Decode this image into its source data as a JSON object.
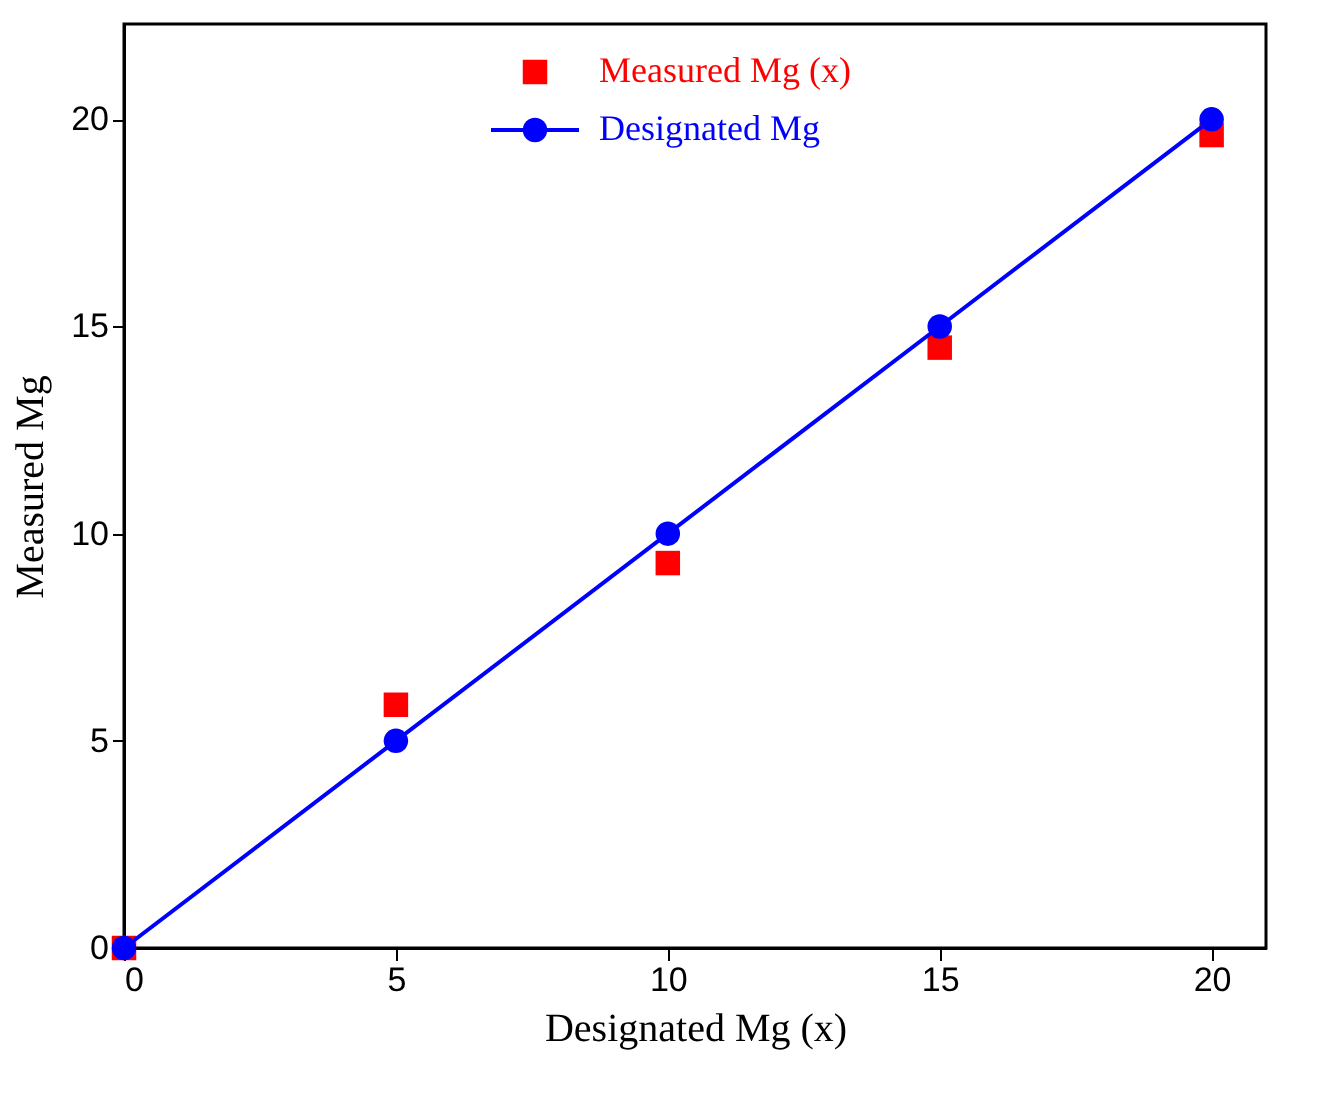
{
  "chart_data": {
    "type": "scatter",
    "xlabel": "Designated Mg (x)",
    "ylabel": "Measured Mg",
    "x": [
      0,
      5,
      10,
      15,
      20
    ],
    "series": [
      {
        "name": "Measured Mg (x)",
        "type": "scatter",
        "marker": "square",
        "color": "#ff0000",
        "values": [
          0,
          5.87,
          9.29,
          14.49,
          19.62
        ]
      },
      {
        "name": "Designated Mg",
        "type": "line",
        "marker": "circle",
        "line_style": "solid",
        "color": "#0000ff",
        "values": [
          0,
          5,
          10,
          15,
          20
        ]
      }
    ],
    "xlim": [
      0,
      21
    ],
    "ylim": [
      0,
      22.3
    ],
    "xticks": [
      0,
      5,
      10,
      15,
      20
    ],
    "yticks": [
      0,
      5,
      10,
      15,
      20
    ],
    "grid": false,
    "legend": "top"
  }
}
